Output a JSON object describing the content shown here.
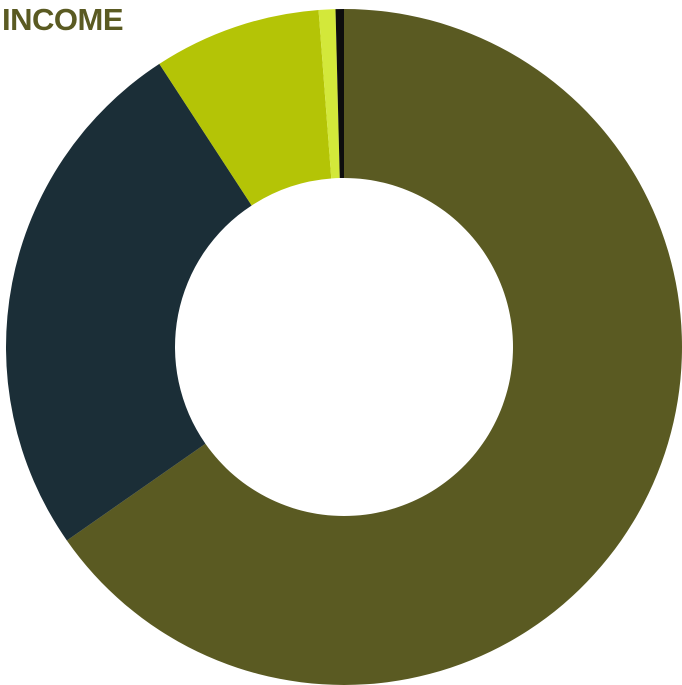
{
  "chart_data": {
    "type": "pie",
    "title": "INCOME",
    "donut": true,
    "start_angle_deg": 0,
    "direction": "clockwise",
    "slices": [
      {
        "value": 65.3,
        "color": "#5a5a22"
      },
      {
        "value": 25.5,
        "color": "#1b2e37"
      },
      {
        "value": 8.0,
        "color": "#b4c406"
      },
      {
        "value": 0.8,
        "color": "#d3e83a"
      },
      {
        "value": 0.4,
        "color": "#0d0d0d"
      }
    ]
  },
  "colors": {
    "title": "#5a5a22",
    "background": "#ffffff",
    "hole": "#ffffff"
  }
}
